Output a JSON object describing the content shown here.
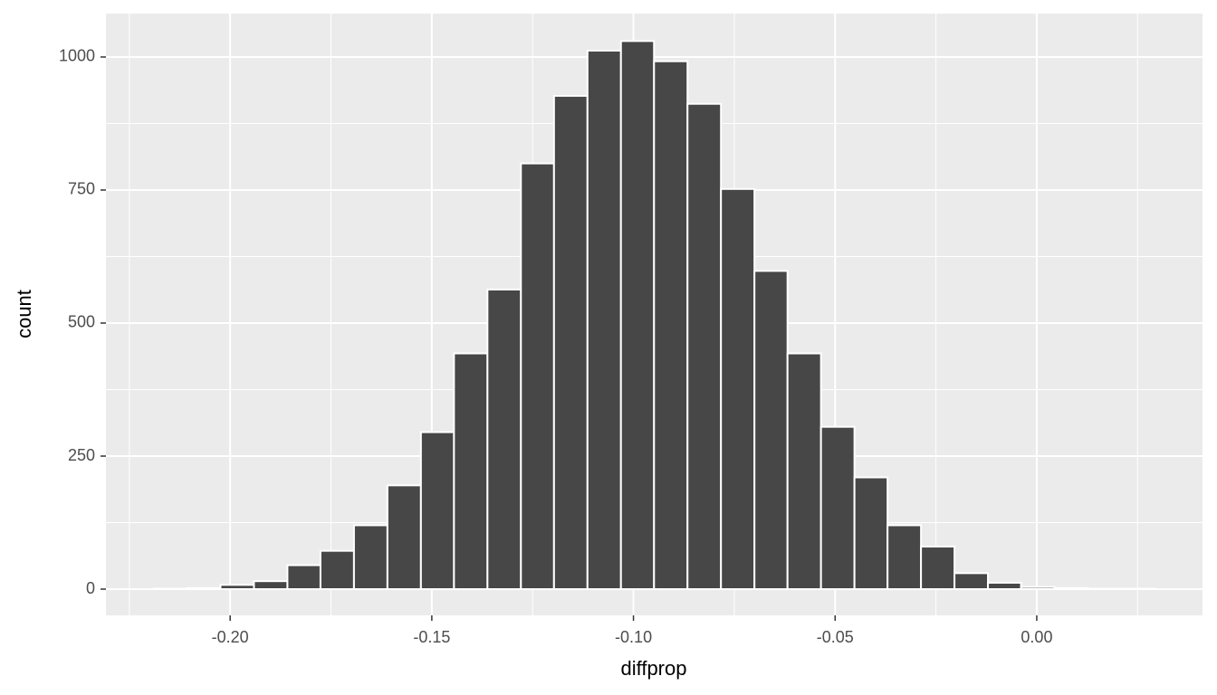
{
  "chart_data": {
    "type": "histogram",
    "x_label": "diffprop",
    "y_label": "count",
    "bins": [
      -0.2189,
      -0.2106,
      -0.2024,
      -0.1941,
      -0.1858,
      -0.1776,
      -0.1693,
      -0.161,
      -0.1527,
      -0.1445,
      -0.1362,
      -0.1279,
      -0.1197,
      -0.1114,
      -0.1031,
      -0.0949,
      -0.0866,
      -0.0783,
      -0.07,
      -0.0618,
      -0.0535,
      -0.0452,
      -0.037,
      -0.0287,
      -0.0204,
      -0.0121,
      -0.0039,
      0.0044,
      0.0127,
      0.0209,
      0.0292
    ],
    "values": [
      1,
      2,
      8,
      15,
      45,
      72,
      120,
      195,
      295,
      443,
      563,
      800,
      927,
      1012,
      1030,
      992,
      912,
      752,
      598,
      443,
      305,
      210,
      120,
      80,
      30,
      12,
      4,
      2,
      1,
      1
    ],
    "color": "#474747",
    "edge_color": "#ffffff",
    "panel_color": "#ebebeb",
    "grid": true,
    "xlim": [
      -0.2308,
      0.0411
    ],
    "ylim": [
      -49.3,
      1081.6
    ],
    "xticks": [
      {
        "value": -0.2,
        "label": "-0.20"
      },
      {
        "value": -0.15,
        "label": "-0.15"
      },
      {
        "value": -0.1,
        "label": "-0.10"
      },
      {
        "value": -0.05,
        "label": "-0.05"
      },
      {
        "value": 0,
        "label": "0.00"
      }
    ],
    "yticks": [
      0,
      250,
      500,
      750,
      1000
    ]
  }
}
